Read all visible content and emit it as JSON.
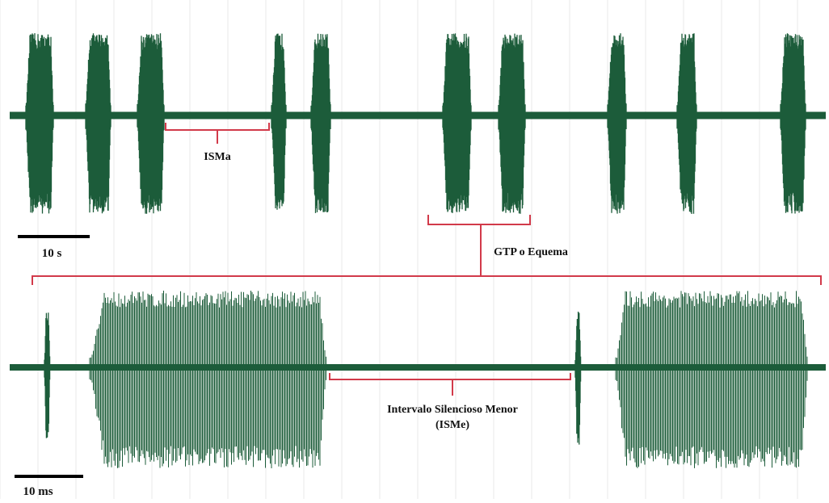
{
  "colors": {
    "trace": "#1c5c3a",
    "bracket": "#d23a4a",
    "scalebar": "#000000",
    "grid": "#e9e9e9",
    "label": "#111111"
  },
  "labels": {
    "isma": "ISMa",
    "gtp": "GTP o Equema",
    "isme_line1": "Intervalo Silencioso Menor",
    "isme_line2": "(ISMe)"
  },
  "scalebars": {
    "top": "10 s",
    "bottom": "10 ms"
  }
}
